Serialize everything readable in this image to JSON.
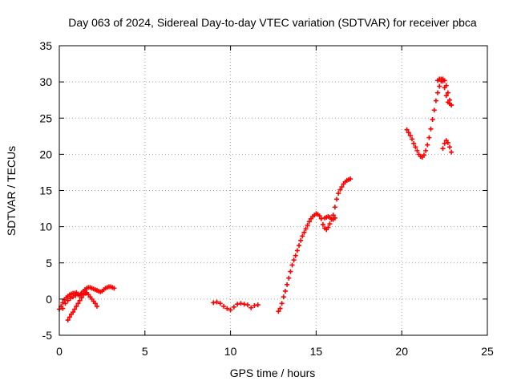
{
  "chart_data": {
    "type": "scatter",
    "title": "Day 063 of 2024, Sidereal Day-to-day VTEC variation (SDTVAR) for receiver pbca",
    "xlabel": "GPS time / hours",
    "ylabel": "SDTVAR / TECUs",
    "xlim": [
      0,
      25
    ],
    "ylim": [
      -5,
      35
    ],
    "xticks": [
      0,
      5,
      10,
      15,
      20,
      25
    ],
    "yticks": [
      -5,
      0,
      5,
      10,
      15,
      20,
      25,
      30,
      35
    ],
    "grid": true,
    "marker": "plus",
    "color": "#ff0000",
    "series": [
      {
        "x": [
          0.0,
          0.1,
          0.2,
          0.3,
          0.4,
          0.5,
          0.6,
          0.7,
          0.8,
          0.9,
          1.0,
          1.1,
          1.2,
          1.3,
          1.4,
          1.5,
          1.6,
          1.7,
          1.8,
          1.9,
          2.0,
          2.1,
          2.2,
          2.3,
          2.4,
          2.5,
          2.6,
          2.7,
          2.8,
          2.9,
          3.0,
          3.1,
          3.2
        ],
        "y": [
          -1.4,
          -1.0,
          -0.5,
          -0.1,
          0.2,
          0.4,
          0.6,
          0.7,
          0.8,
          0.8,
          0.9,
          0.7,
          0.5,
          0.8,
          1.1,
          1.3,
          1.5,
          1.6,
          1.6,
          1.5,
          1.4,
          1.3,
          1.2,
          1.1,
          1.0,
          1.1,
          1.3,
          1.5,
          1.6,
          1.7,
          1.7,
          1.6,
          1.5
        ]
      },
      {
        "x": [
          0.5,
          0.6,
          0.7,
          0.8,
          0.9,
          1.0,
          1.1,
          1.2,
          1.3,
          1.4,
          1.5,
          1.6,
          1.7,
          1.8,
          1.9,
          2.0,
          2.1,
          2.2
        ],
        "y": [
          -2.9,
          -2.5,
          -2.1,
          -1.8,
          -1.4,
          -1.0,
          -0.6,
          -0.2,
          0.2,
          0.6,
          0.8,
          0.9,
          0.6,
          0.3,
          0.0,
          -0.3,
          -0.6,
          -1.0
        ]
      },
      {
        "x": [
          0.2,
          0.35,
          0.5,
          0.65,
          0.8,
          0.95,
          1.1,
          1.25,
          1.4,
          1.55
        ],
        "y": [
          -1.3,
          -0.6,
          -0.2,
          0.1,
          0.3,
          0.5,
          0.6,
          0.7,
          0.7,
          0.8
        ]
      },
      {
        "x": [
          9.0,
          9.2,
          9.4,
          9.6,
          9.8,
          10.0,
          10.2,
          10.4,
          10.6,
          10.8,
          11.0,
          11.2,
          11.4,
          11.6
        ],
        "y": [
          -0.5,
          -0.4,
          -0.6,
          -1.0,
          -1.3,
          -1.5,
          -1.1,
          -0.7,
          -0.6,
          -0.7,
          -0.8,
          -1.2,
          -0.9,
          -0.8
        ]
      },
      {
        "x": [
          12.8,
          12.9,
          13.0,
          13.1,
          13.2,
          13.3,
          13.4,
          13.5,
          13.6,
          13.7,
          13.8,
          13.9,
          14.0,
          14.1,
          14.2,
          14.3,
          14.4,
          14.5,
          14.6,
          14.7,
          14.8,
          14.9,
          15.0,
          15.1,
          15.2,
          15.3,
          15.4,
          15.5,
          15.6,
          15.7,
          15.8,
          15.9,
          16.0,
          16.1,
          16.2,
          16.3,
          16.4,
          16.5,
          16.6,
          16.7,
          16.8,
          16.9,
          17.0
        ],
        "y": [
          -1.7,
          -1.3,
          -0.6,
          0.3,
          1.1,
          2.0,
          2.9,
          3.8,
          4.7,
          5.4,
          6.0,
          6.7,
          7.4,
          8.1,
          8.7,
          9.2,
          9.7,
          10.2,
          10.7,
          11.1,
          11.4,
          11.6,
          11.8,
          11.7,
          11.5,
          11.1,
          10.3,
          9.8,
          9.6,
          9.9,
          10.4,
          11.0,
          11.6,
          12.7,
          13.8,
          14.6,
          15.1,
          15.5,
          15.9,
          16.2,
          16.4,
          16.5,
          16.6
        ]
      },
      {
        "x": [
          15.5,
          15.6,
          15.7,
          15.8,
          15.9,
          16.0,
          16.1
        ],
        "y": [
          11.2,
          11.3,
          11.4,
          11.3,
          11.1,
          11.0,
          11.2
        ]
      },
      {
        "x": [
          20.3,
          20.4,
          20.5,
          20.6,
          20.7,
          20.8,
          20.9,
          21.0,
          21.1,
          21.2,
          21.3,
          21.4,
          21.5,
          21.6,
          21.7,
          21.8,
          21.9,
          22.0,
          22.1,
          22.2,
          22.3,
          22.4,
          22.5,
          22.6,
          22.7,
          22.8,
          22.9
        ],
        "y": [
          23.4,
          23.0,
          22.6,
          22.1,
          21.5,
          21.0,
          20.5,
          20.0,
          19.7,
          19.6,
          19.9,
          20.5,
          21.3,
          22.3,
          23.5,
          24.8,
          26.1,
          27.4,
          28.5,
          29.4,
          30.1,
          30.4,
          30.2,
          29.5,
          28.5,
          27.5,
          26.8
        ]
      },
      {
        "x": [
          22.1,
          22.2,
          22.3,
          22.4,
          22.5,
          22.6,
          22.7,
          22.8,
          22.9
        ],
        "y": [
          30.2,
          30.4,
          30.4,
          30.1,
          29.2,
          28.1,
          27.2,
          27.0,
          26.8
        ]
      },
      {
        "x": [
          22.4,
          22.5,
          22.6,
          22.7,
          22.8,
          22.9
        ],
        "y": [
          20.8,
          21.5,
          21.9,
          21.6,
          21.0,
          20.3
        ]
      }
    ]
  }
}
